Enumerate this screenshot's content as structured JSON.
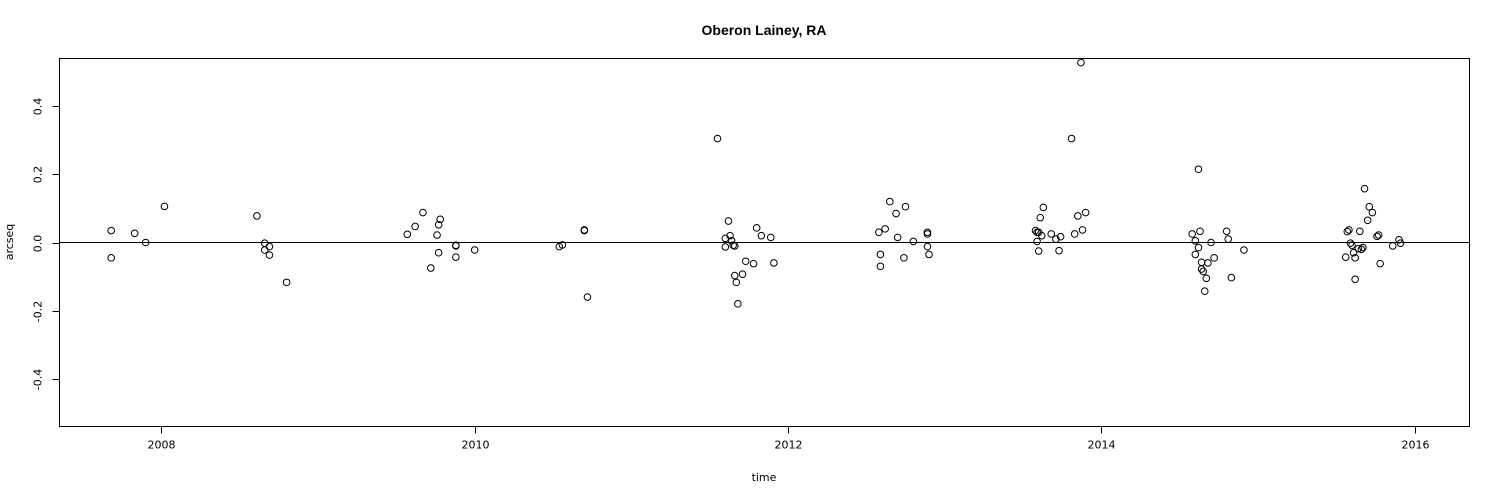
{
  "chart_data": {
    "type": "scatter",
    "title": "Oberon Lainey, RA",
    "xlabel": "time",
    "ylabel": "arcseq",
    "xlim": [
      2007.35,
      2016.35
    ],
    "ylim": [
      -0.54,
      0.54
    ],
    "x_ticks": [
      2008,
      2010,
      2012,
      2014,
      2016
    ],
    "x_tick_labels": [
      "2008",
      "2010",
      "2012",
      "2014",
      "2016"
    ],
    "y_ticks": [
      -0.4,
      -0.2,
      0.0,
      0.2,
      0.4
    ],
    "y_tick_labels": [
      "-0.4",
      "-0.2",
      "0.0",
      "0.2",
      "0.4"
    ],
    "reference_line_y": 0,
    "points": [
      [
        2007.68,
        0.035
      ],
      [
        2007.68,
        -0.045
      ],
      [
        2007.83,
        0.027
      ],
      [
        2007.9,
        0.0
      ],
      [
        2008.02,
        0.106
      ],
      [
        2008.61,
        0.078
      ],
      [
        2008.66,
        -0.002
      ],
      [
        2008.66,
        -0.022
      ],
      [
        2008.69,
        -0.037
      ],
      [
        2008.69,
        -0.012
      ],
      [
        2008.8,
        -0.117
      ],
      [
        2009.57,
        0.024
      ],
      [
        2009.62,
        0.047
      ],
      [
        2009.67,
        0.088
      ],
      [
        2009.72,
        -0.075
      ],
      [
        2009.76,
        0.022
      ],
      [
        2009.77,
        0.052
      ],
      [
        2009.78,
        0.068
      ],
      [
        2009.77,
        -0.03
      ],
      [
        2009.88,
        -0.008
      ],
      [
        2009.88,
        -0.01
      ],
      [
        2009.88,
        -0.043
      ],
      [
        2010.0,
        -0.022
      ],
      [
        2010.54,
        -0.012
      ],
      [
        2010.56,
        -0.007
      ],
      [
        2010.7,
        0.037
      ],
      [
        2010.7,
        0.035
      ],
      [
        2010.72,
        -0.16
      ],
      [
        2011.55,
        0.305
      ],
      [
        2011.6,
        0.012
      ],
      [
        2011.6,
        -0.013
      ],
      [
        2011.62,
        0.063
      ],
      [
        2011.63,
        0.02
      ],
      [
        2011.64,
        0.005
      ],
      [
        2011.65,
        -0.008
      ],
      [
        2011.66,
        -0.01
      ],
      [
        2011.66,
        -0.097
      ],
      [
        2011.67,
        -0.117
      ],
      [
        2011.68,
        -0.18
      ],
      [
        2011.71,
        -0.093
      ],
      [
        2011.73,
        -0.055
      ],
      [
        2011.78,
        -0.062
      ],
      [
        2011.8,
        0.043
      ],
      [
        2011.83,
        0.02
      ],
      [
        2011.89,
        0.015
      ],
      [
        2011.91,
        -0.06
      ],
      [
        2012.58,
        0.03
      ],
      [
        2012.59,
        -0.035
      ],
      [
        2012.59,
        -0.07
      ],
      [
        2012.62,
        0.04
      ],
      [
        2012.65,
        0.12
      ],
      [
        2012.69,
        0.085
      ],
      [
        2012.7,
        0.015
      ],
      [
        2012.74,
        -0.045
      ],
      [
        2012.75,
        0.105
      ],
      [
        2012.8,
        0.003
      ],
      [
        2012.89,
        0.03
      ],
      [
        2012.89,
        0.025
      ],
      [
        2012.89,
        -0.012
      ],
      [
        2012.9,
        -0.035
      ],
      [
        2013.58,
        0.035
      ],
      [
        2013.59,
        0.03
      ],
      [
        2013.59,
        0.003
      ],
      [
        2013.6,
        -0.025
      ],
      [
        2013.6,
        0.03
      ],
      [
        2013.61,
        0.073
      ],
      [
        2013.62,
        0.02
      ],
      [
        2013.63,
        0.103
      ],
      [
        2013.68,
        0.025
      ],
      [
        2013.71,
        0.01
      ],
      [
        2013.73,
        -0.024
      ],
      [
        2013.74,
        0.017
      ],
      [
        2013.81,
        0.305
      ],
      [
        2013.83,
        0.025
      ],
      [
        2013.85,
        0.078
      ],
      [
        2013.87,
        0.528
      ],
      [
        2013.88,
        0.037
      ],
      [
        2013.9,
        0.088
      ],
      [
        2014.58,
        0.025
      ],
      [
        2014.6,
        0.005
      ],
      [
        2014.6,
        -0.035
      ],
      [
        2014.62,
        -0.015
      ],
      [
        2014.62,
        0.215
      ],
      [
        2014.63,
        0.033
      ],
      [
        2014.64,
        -0.058
      ],
      [
        2014.64,
        -0.078
      ],
      [
        2014.65,
        -0.085
      ],
      [
        2014.66,
        -0.143
      ],
      [
        2014.67,
        -0.105
      ],
      [
        2014.68,
        -0.06
      ],
      [
        2014.7,
        0.0
      ],
      [
        2014.72,
        -0.045
      ],
      [
        2014.8,
        0.033
      ],
      [
        2014.81,
        0.01
      ],
      [
        2014.83,
        -0.103
      ],
      [
        2014.91,
        -0.022
      ],
      [
        2015.56,
        -0.043
      ],
      [
        2015.57,
        0.032
      ],
      [
        2015.58,
        0.037
      ],
      [
        2015.59,
        -0.002
      ],
      [
        2015.6,
        -0.008
      ],
      [
        2015.61,
        -0.03
      ],
      [
        2015.62,
        -0.108
      ],
      [
        2015.62,
        -0.045
      ],
      [
        2015.64,
        -0.018
      ],
      [
        2015.65,
        0.033
      ],
      [
        2015.66,
        -0.02
      ],
      [
        2015.67,
        -0.015
      ],
      [
        2015.68,
        0.158
      ],
      [
        2015.7,
        0.065
      ],
      [
        2015.71,
        0.105
      ],
      [
        2015.73,
        0.088
      ],
      [
        2015.76,
        0.018
      ],
      [
        2015.77,
        0.022
      ],
      [
        2015.78,
        -0.062
      ],
      [
        2015.86,
        -0.01
      ],
      [
        2015.9,
        0.008
      ],
      [
        2015.91,
        -0.002
      ]
    ]
  }
}
